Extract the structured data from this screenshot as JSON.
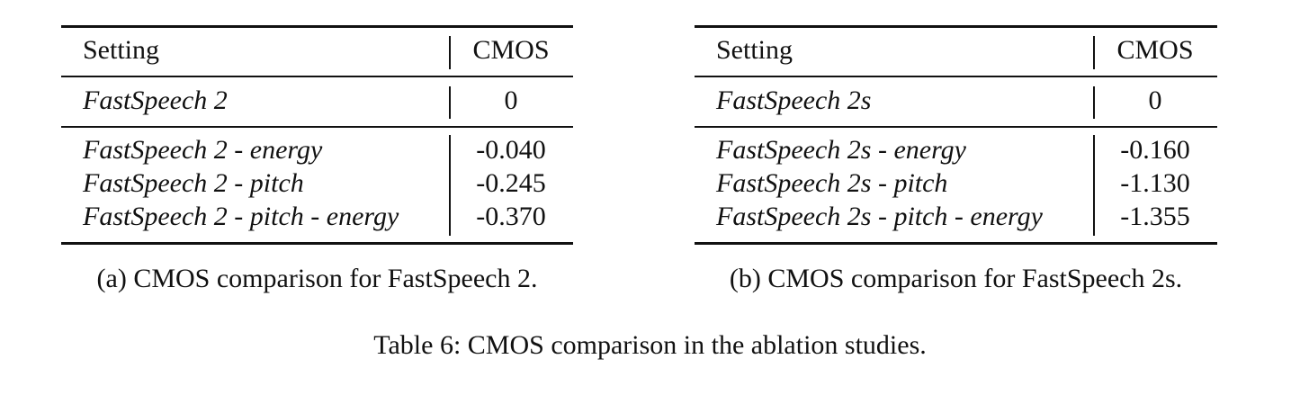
{
  "tables": [
    {
      "header": [
        "Setting",
        "CMOS"
      ],
      "baseline": [
        "FastSpeech 2",
        "0"
      ],
      "rows": [
        [
          "FastSpeech 2 - energy",
          "-0.040"
        ],
        [
          "FastSpeech 2 - pitch",
          "-0.245"
        ],
        [
          "FastSpeech 2 - pitch - energy",
          "-0.370"
        ]
      ],
      "caption": "(a) CMOS comparison for FastSpeech 2."
    },
    {
      "header": [
        "Setting",
        "CMOS"
      ],
      "baseline": [
        "FastSpeech 2s",
        "0"
      ],
      "rows": [
        [
          "FastSpeech 2s - energy",
          "-0.160"
        ],
        [
          "FastSpeech 2s - pitch",
          "-1.130"
        ],
        [
          "FastSpeech 2s - pitch - energy",
          "-1.355"
        ]
      ],
      "caption": "(b) CMOS comparison for FastSpeech 2s."
    }
  ],
  "caption": "Table 6: CMOS comparison in the ablation studies."
}
